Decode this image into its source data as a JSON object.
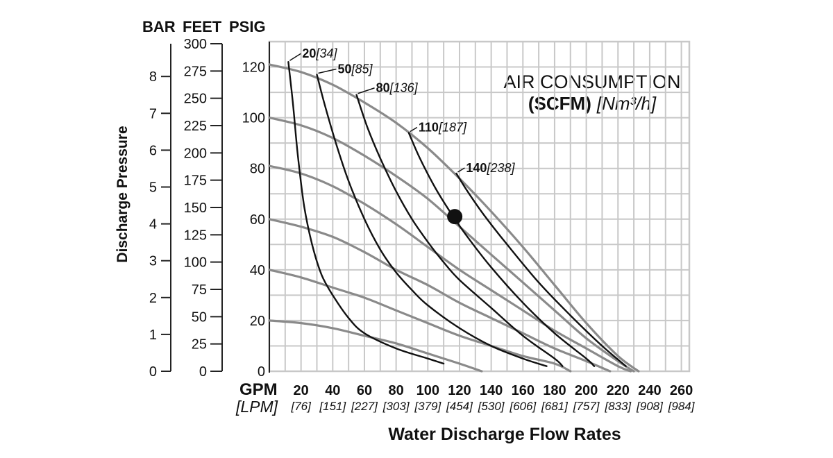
{
  "chart_data": {
    "type": "line",
    "title": "AIR CONSUMPTION",
    "subtitle_bold": "(SCFM)",
    "subtitle_italic": "[Nm³/h]",
    "xlabel": "Water Discharge Flow Rates",
    "x_unit_primary": "GPM",
    "x_unit_secondary": "[LPM]",
    "x_ticks": [
      "20",
      "40",
      "60",
      "80",
      "100",
      "120",
      "140",
      "160",
      "180",
      "200",
      "220",
      "240",
      "260"
    ],
    "x_ticks_lpm": [
      "[76]",
      "[151]",
      "[227]",
      "[303]",
      "[379]",
      "[454]",
      "[530]",
      "[606]",
      "[681]",
      "[757]",
      "[833]",
      "[908]",
      "[984]"
    ],
    "xlim": [
      0,
      265
    ],
    "ylabel": "Discharge Pressure",
    "y_axes": [
      {
        "unit": "BAR",
        "ticks": [
          "0",
          "1",
          "2",
          "3",
          "4",
          "5",
          "6",
          "7",
          "8"
        ]
      },
      {
        "unit": "FEET",
        "ticks": [
          "0",
          "25",
          "50",
          "75",
          "100",
          "125",
          "150",
          "175",
          "200",
          "225",
          "250",
          "275",
          "300"
        ]
      },
      {
        "unit": "PSIG",
        "ticks": [
          "0",
          "20",
          "40",
          "60",
          "80",
          "100",
          "120"
        ]
      }
    ],
    "ylim_psig": [
      0,
      130
    ],
    "pressure_curves": [
      {
        "name": "pressure-curve-120",
        "points": [
          [
            0,
            121
          ],
          [
            20,
            118
          ],
          [
            40,
            113
          ],
          [
            60,
            106
          ],
          [
            80,
            98
          ],
          [
            100,
            88
          ],
          [
            120,
            76
          ],
          [
            140,
            63
          ],
          [
            160,
            49
          ],
          [
            180,
            34
          ],
          [
            200,
            19
          ],
          [
            220,
            6
          ],
          [
            233,
            0
          ]
        ]
      },
      {
        "name": "pressure-curve-100",
        "points": [
          [
            0,
            100
          ],
          [
            20,
            97
          ],
          [
            40,
            92
          ],
          [
            60,
            85
          ],
          [
            80,
            77
          ],
          [
            100,
            68
          ],
          [
            120,
            57
          ],
          [
            140,
            46
          ],
          [
            160,
            35
          ],
          [
            180,
            24
          ],
          [
            200,
            13
          ],
          [
            220,
            4
          ],
          [
            230,
            0
          ]
        ]
      },
      {
        "name": "pressure-curve-80",
        "points": [
          [
            0,
            81
          ],
          [
            20,
            78
          ],
          [
            40,
            73
          ],
          [
            60,
            66
          ],
          [
            80,
            58
          ],
          [
            100,
            49
          ],
          [
            120,
            40
          ],
          [
            140,
            32
          ],
          [
            160,
            24
          ],
          [
            180,
            16
          ],
          [
            200,
            9
          ],
          [
            220,
            2
          ],
          [
            228,
            0
          ]
        ]
      },
      {
        "name": "pressure-curve-60",
        "points": [
          [
            0,
            60
          ],
          [
            20,
            57
          ],
          [
            40,
            53
          ],
          [
            60,
            47
          ],
          [
            80,
            40
          ],
          [
            100,
            34
          ],
          [
            120,
            27
          ],
          [
            140,
            21
          ],
          [
            160,
            15
          ],
          [
            180,
            9
          ],
          [
            200,
            4
          ],
          [
            215,
            0
          ]
        ]
      },
      {
        "name": "pressure-curve-40",
        "points": [
          [
            0,
            40
          ],
          [
            20,
            37
          ],
          [
            40,
            33
          ],
          [
            60,
            29
          ],
          [
            80,
            24
          ],
          [
            100,
            19
          ],
          [
            120,
            14
          ],
          [
            140,
            10
          ],
          [
            160,
            6
          ],
          [
            180,
            3
          ],
          [
            190,
            0
          ]
        ]
      },
      {
        "name": "pressure-curve-20",
        "points": [
          [
            0,
            20
          ],
          [
            20,
            19
          ],
          [
            40,
            17
          ],
          [
            60,
            14
          ],
          [
            80,
            11
          ],
          [
            100,
            7
          ],
          [
            120,
            3
          ],
          [
            134,
            0
          ]
        ]
      }
    ],
    "air_curves": [
      {
        "label": "20",
        "label_metric": "[34]",
        "points": [
          [
            12,
            122
          ],
          [
            15,
            105
          ],
          [
            18,
            85
          ],
          [
            22,
            65
          ],
          [
            27,
            50
          ],
          [
            33,
            38
          ],
          [
            40,
            30
          ],
          [
            50,
            21
          ],
          [
            60,
            15
          ],
          [
            80,
            9
          ],
          [
            100,
            5
          ],
          [
            110,
            3
          ]
        ]
      },
      {
        "label": "50",
        "label_metric": "[85]",
        "points": [
          [
            30,
            117
          ],
          [
            35,
            105
          ],
          [
            42,
            90
          ],
          [
            50,
            75
          ],
          [
            60,
            60
          ],
          [
            70,
            48
          ],
          [
            80,
            39
          ],
          [
            90,
            32
          ],
          [
            100,
            26
          ],
          [
            120,
            17
          ],
          [
            140,
            10
          ],
          [
            160,
            5
          ],
          [
            175,
            2
          ]
        ]
      },
      {
        "label": "80",
        "label_metric": "[136]",
        "points": [
          [
            55,
            109
          ],
          [
            62,
            96
          ],
          [
            70,
            84
          ],
          [
            80,
            71
          ],
          [
            90,
            60
          ],
          [
            100,
            51
          ],
          [
            110,
            43
          ],
          [
            120,
            36
          ],
          [
            140,
            25
          ],
          [
            160,
            14
          ],
          [
            180,
            5
          ],
          [
            185,
            2
          ]
        ]
      },
      {
        "label": "110",
        "label_metric": "[187]",
        "points": [
          [
            88,
            94
          ],
          [
            95,
            84
          ],
          [
            105,
            72
          ],
          [
            115,
            62
          ],
          [
            125,
            53
          ],
          [
            140,
            41
          ],
          [
            160,
            27
          ],
          [
            180,
            15
          ],
          [
            200,
            5
          ],
          [
            205,
            2
          ]
        ]
      },
      {
        "label": "140",
        "label_metric": "[238]",
        "points": [
          [
            118,
            78
          ],
          [
            125,
            71
          ],
          [
            135,
            62
          ],
          [
            150,
            50
          ],
          [
            170,
            35
          ],
          [
            190,
            22
          ],
          [
            210,
            10
          ],
          [
            225,
            2
          ]
        ]
      }
    ],
    "marker": {
      "x": 117,
      "y": 61
    }
  }
}
